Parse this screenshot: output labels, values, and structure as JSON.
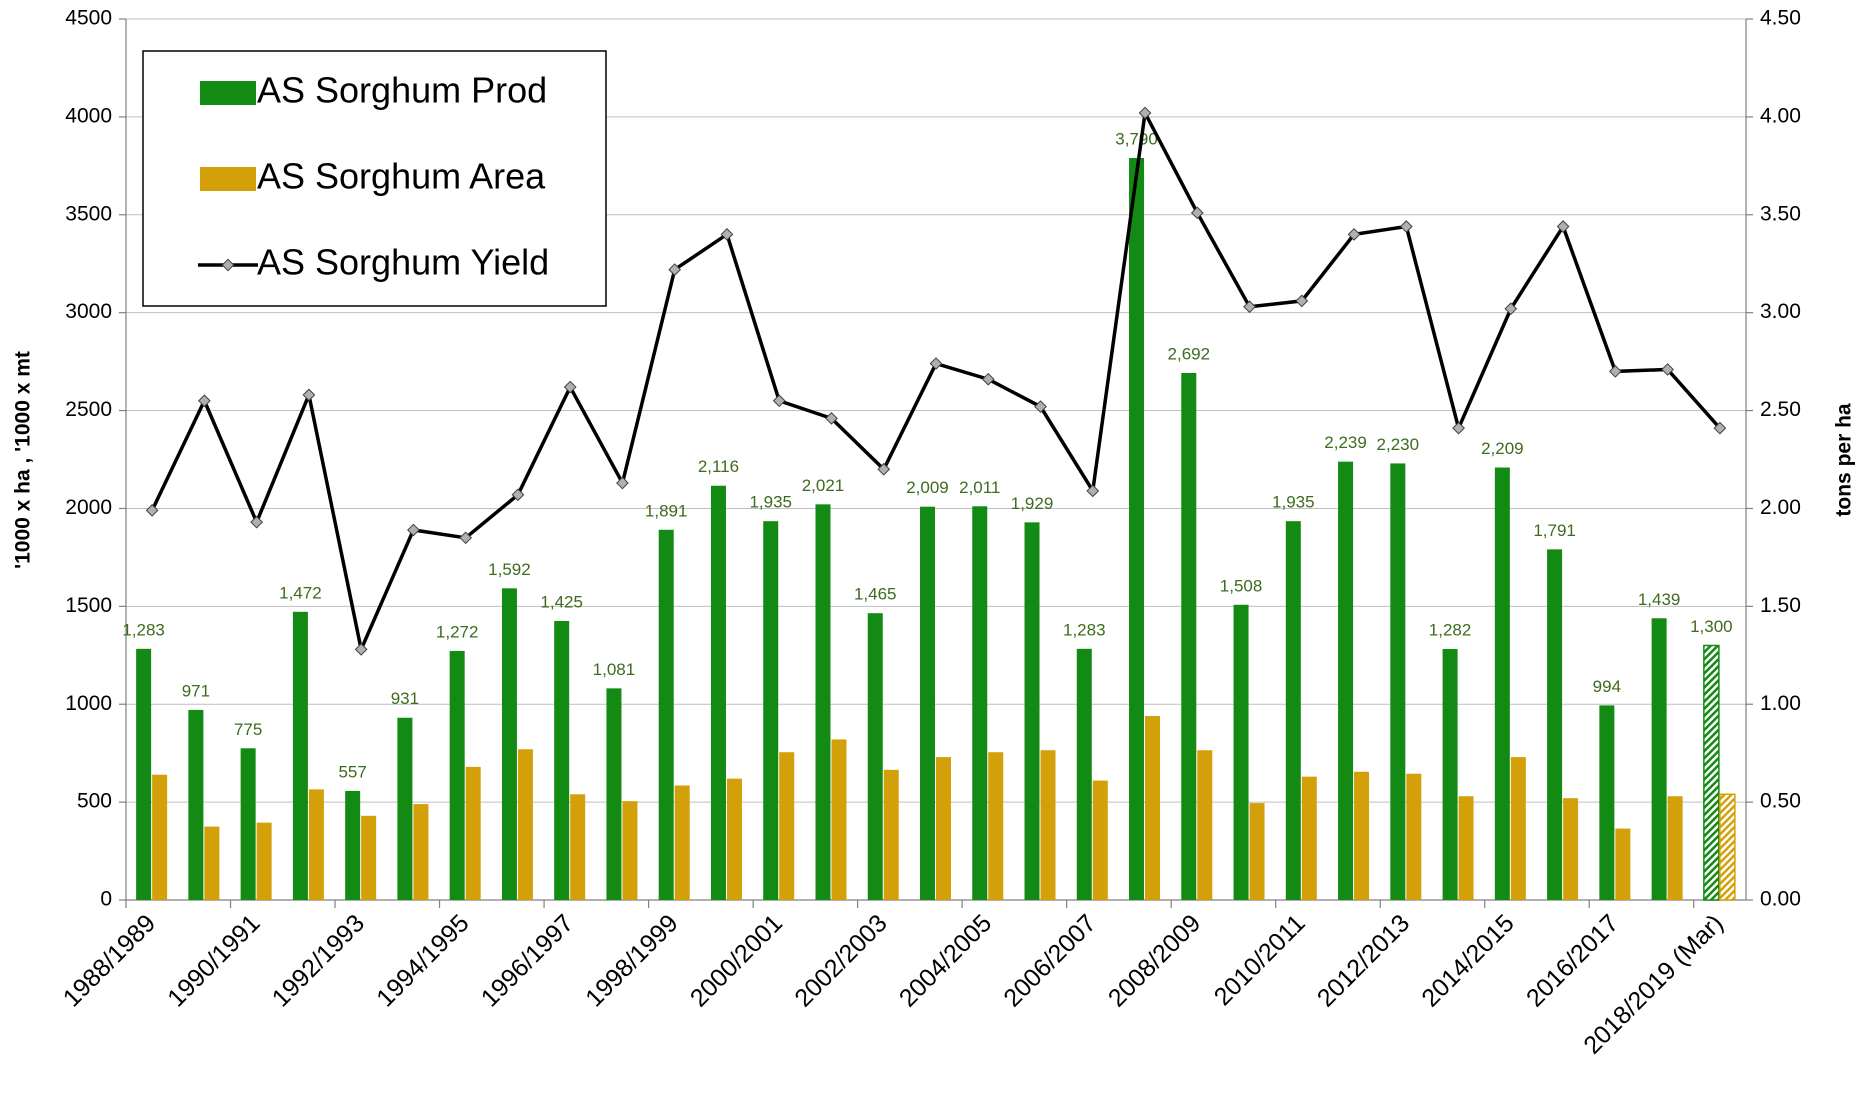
{
  "chart_data": {
    "type": "bar",
    "categories": [
      "1988/1989",
      null,
      "1990/1991",
      null,
      "1992/1993",
      null,
      "1994/1995",
      null,
      "1996/1997",
      null,
      "1998/1999",
      null,
      "2000/2001",
      null,
      "2002/2003",
      null,
      "2004/2005",
      null,
      "2006/2007",
      null,
      "2008/2009",
      null,
      "2010/2011",
      null,
      "2012/2013",
      null,
      "2014/2015",
      null,
      "2016/2017",
      null,
      "2018/2019 (Mar)"
    ],
    "series": [
      {
        "name": "AS Sorghum Prod",
        "type": "bar",
        "color": "#138a13",
        "values": [
          1283,
          971,
          775,
          1472,
          557,
          931,
          1272,
          1592,
          1425,
          1081,
          1891,
          2116,
          1935,
          2021,
          1465,
          2009,
          2011,
          1929,
          1283,
          3790,
          2692,
          1508,
          1935,
          2239,
          2230,
          1282,
          2209,
          1791,
          994,
          1439,
          1300
        ],
        "value_labels": [
          "1,283",
          "971",
          "775",
          "1,472",
          "557",
          "931",
          "1,272",
          "1,592",
          "1,425",
          "1,081",
          "1,891",
          "2,116",
          "1,935",
          "2,021",
          "1,465",
          "2,009",
          "2,011",
          "1,929",
          "1,283",
          "3,790",
          "2,692",
          "1,508",
          "1,935",
          "2,239",
          "2,230",
          "1,282",
          "2,209",
          "1,791",
          "994",
          "1,439",
          "1,300"
        ]
      },
      {
        "name": "AS Sorghum Area",
        "type": "bar",
        "color": "#d4a00a",
        "values": [
          640,
          375,
          395,
          565,
          430,
          490,
          680,
          770,
          540,
          505,
          585,
          620,
          755,
          820,
          665,
          730,
          755,
          765,
          610,
          940,
          765,
          495,
          630,
          655,
          645,
          530,
          730,
          520,
          365,
          530,
          540
        ]
      },
      {
        "name": "AS Sorghum Yield",
        "type": "line",
        "axis": "y2",
        "color": "#000000",
        "values": [
          1.99,
          2.55,
          1.93,
          2.58,
          1.28,
          1.89,
          1.85,
          2.07,
          2.62,
          2.13,
          3.22,
          3.4,
          2.55,
          2.46,
          2.2,
          2.74,
          2.66,
          2.52,
          2.09,
          4.02,
          3.51,
          3.03,
          3.06,
          3.4,
          3.44,
          2.41,
          3.02,
          3.44,
          2.7,
          2.71,
          2.41
        ]
      }
    ],
    "ylabel": "'1000 x ha  ,  '1000 x mt",
    "y2label": "tons per ha",
    "ylim": [
      0,
      4500
    ],
    "yticks": [
      0,
      500,
      1000,
      1500,
      2000,
      2500,
      3000,
      3500,
      4000,
      4500
    ],
    "y2lim": [
      0,
      4.5
    ],
    "y2ticks": [
      {
        "value": 0,
        "label": "0.00"
      },
      {
        "value": 0.5,
        "label": "0.50"
      },
      {
        "value": 1,
        "label": "1.00"
      },
      {
        "value": 1.5,
        "label": "1.50"
      },
      {
        "value": 2,
        "label": "2.00"
      },
      {
        "value": 2.5,
        "label": "2.50"
      },
      {
        "value": 3,
        "label": "3.00"
      },
      {
        "value": 3.5,
        "label": "3.50"
      },
      {
        "value": 4,
        "label": "4.00"
      },
      {
        "value": 4.5,
        "label": "4.50"
      }
    ],
    "grid": true,
    "legend": "upper left",
    "last_bar_hatched": true
  }
}
